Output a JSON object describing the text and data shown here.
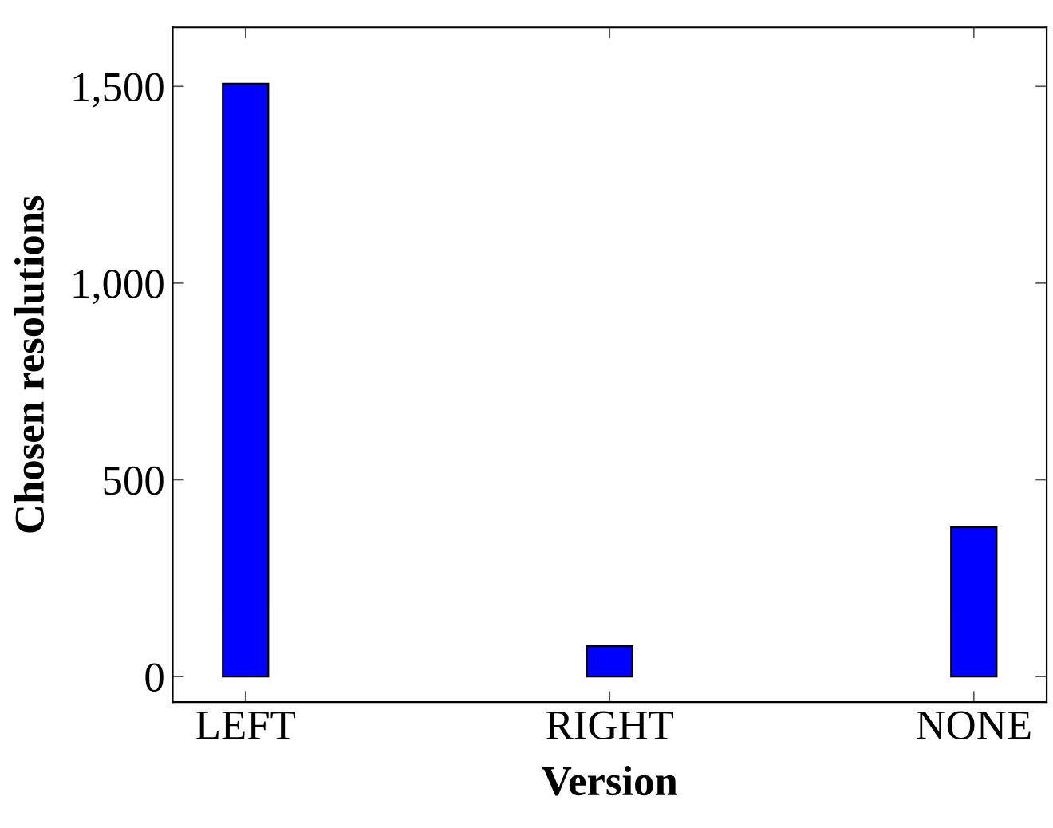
{
  "chart_data": {
    "type": "bar",
    "xlabel": "Version",
    "ylabel": "Chosen resolutions",
    "categories": [
      "LEFT",
      "RIGHT",
      "NONE"
    ],
    "values": [
      1507,
      77,
      379
    ],
    "color": "#0000ff",
    "ylim": [
      -65,
      1650
    ],
    "yticks": [
      0,
      500,
      {
        "value": 1000,
        "label": "1,000"
      },
      {
        "value": 1500,
        "label": "1,500"
      }
    ],
    "grid": false,
    "legend": false
  }
}
